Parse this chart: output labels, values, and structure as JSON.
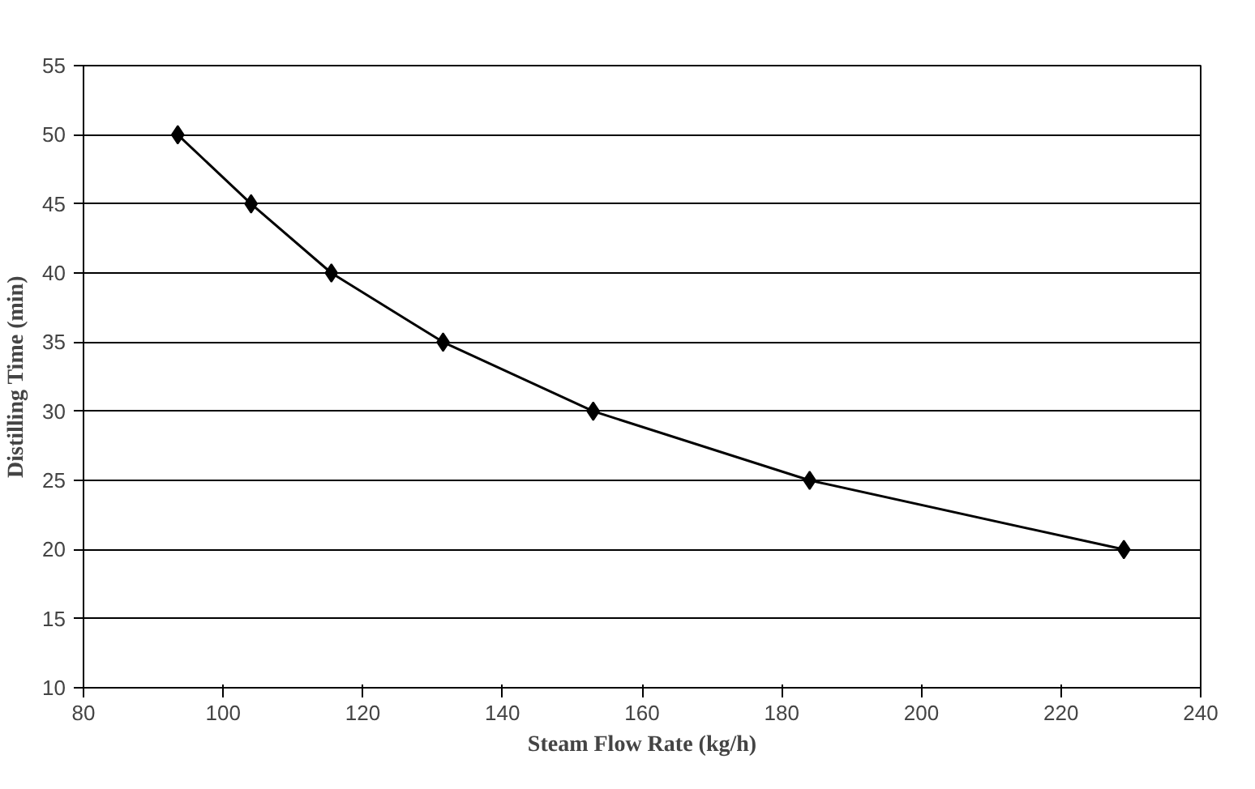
{
  "chart_data": {
    "type": "line",
    "xlabel": "Steam Flow Rate (kg/h)",
    "ylabel": "Distilling Time (min)",
    "x": [
      93.5,
      104,
      115.5,
      131.5,
      153,
      184,
      229
    ],
    "series": [
      {
        "color": "#000000",
        "values": [
          50,
          45,
          40,
          35,
          30,
          25,
          20
        ]
      }
    ],
    "xlim": [
      80,
      240
    ],
    "xticks": [
      80,
      100,
      120,
      140,
      160,
      180,
      200,
      220,
      240
    ],
    "ylim": [
      10,
      55
    ],
    "yticks": [
      10,
      15,
      20,
      25,
      30,
      35,
      40,
      45,
      50,
      55
    ],
    "grid": "y",
    "marker": "diamond",
    "line_style": "solid"
  }
}
